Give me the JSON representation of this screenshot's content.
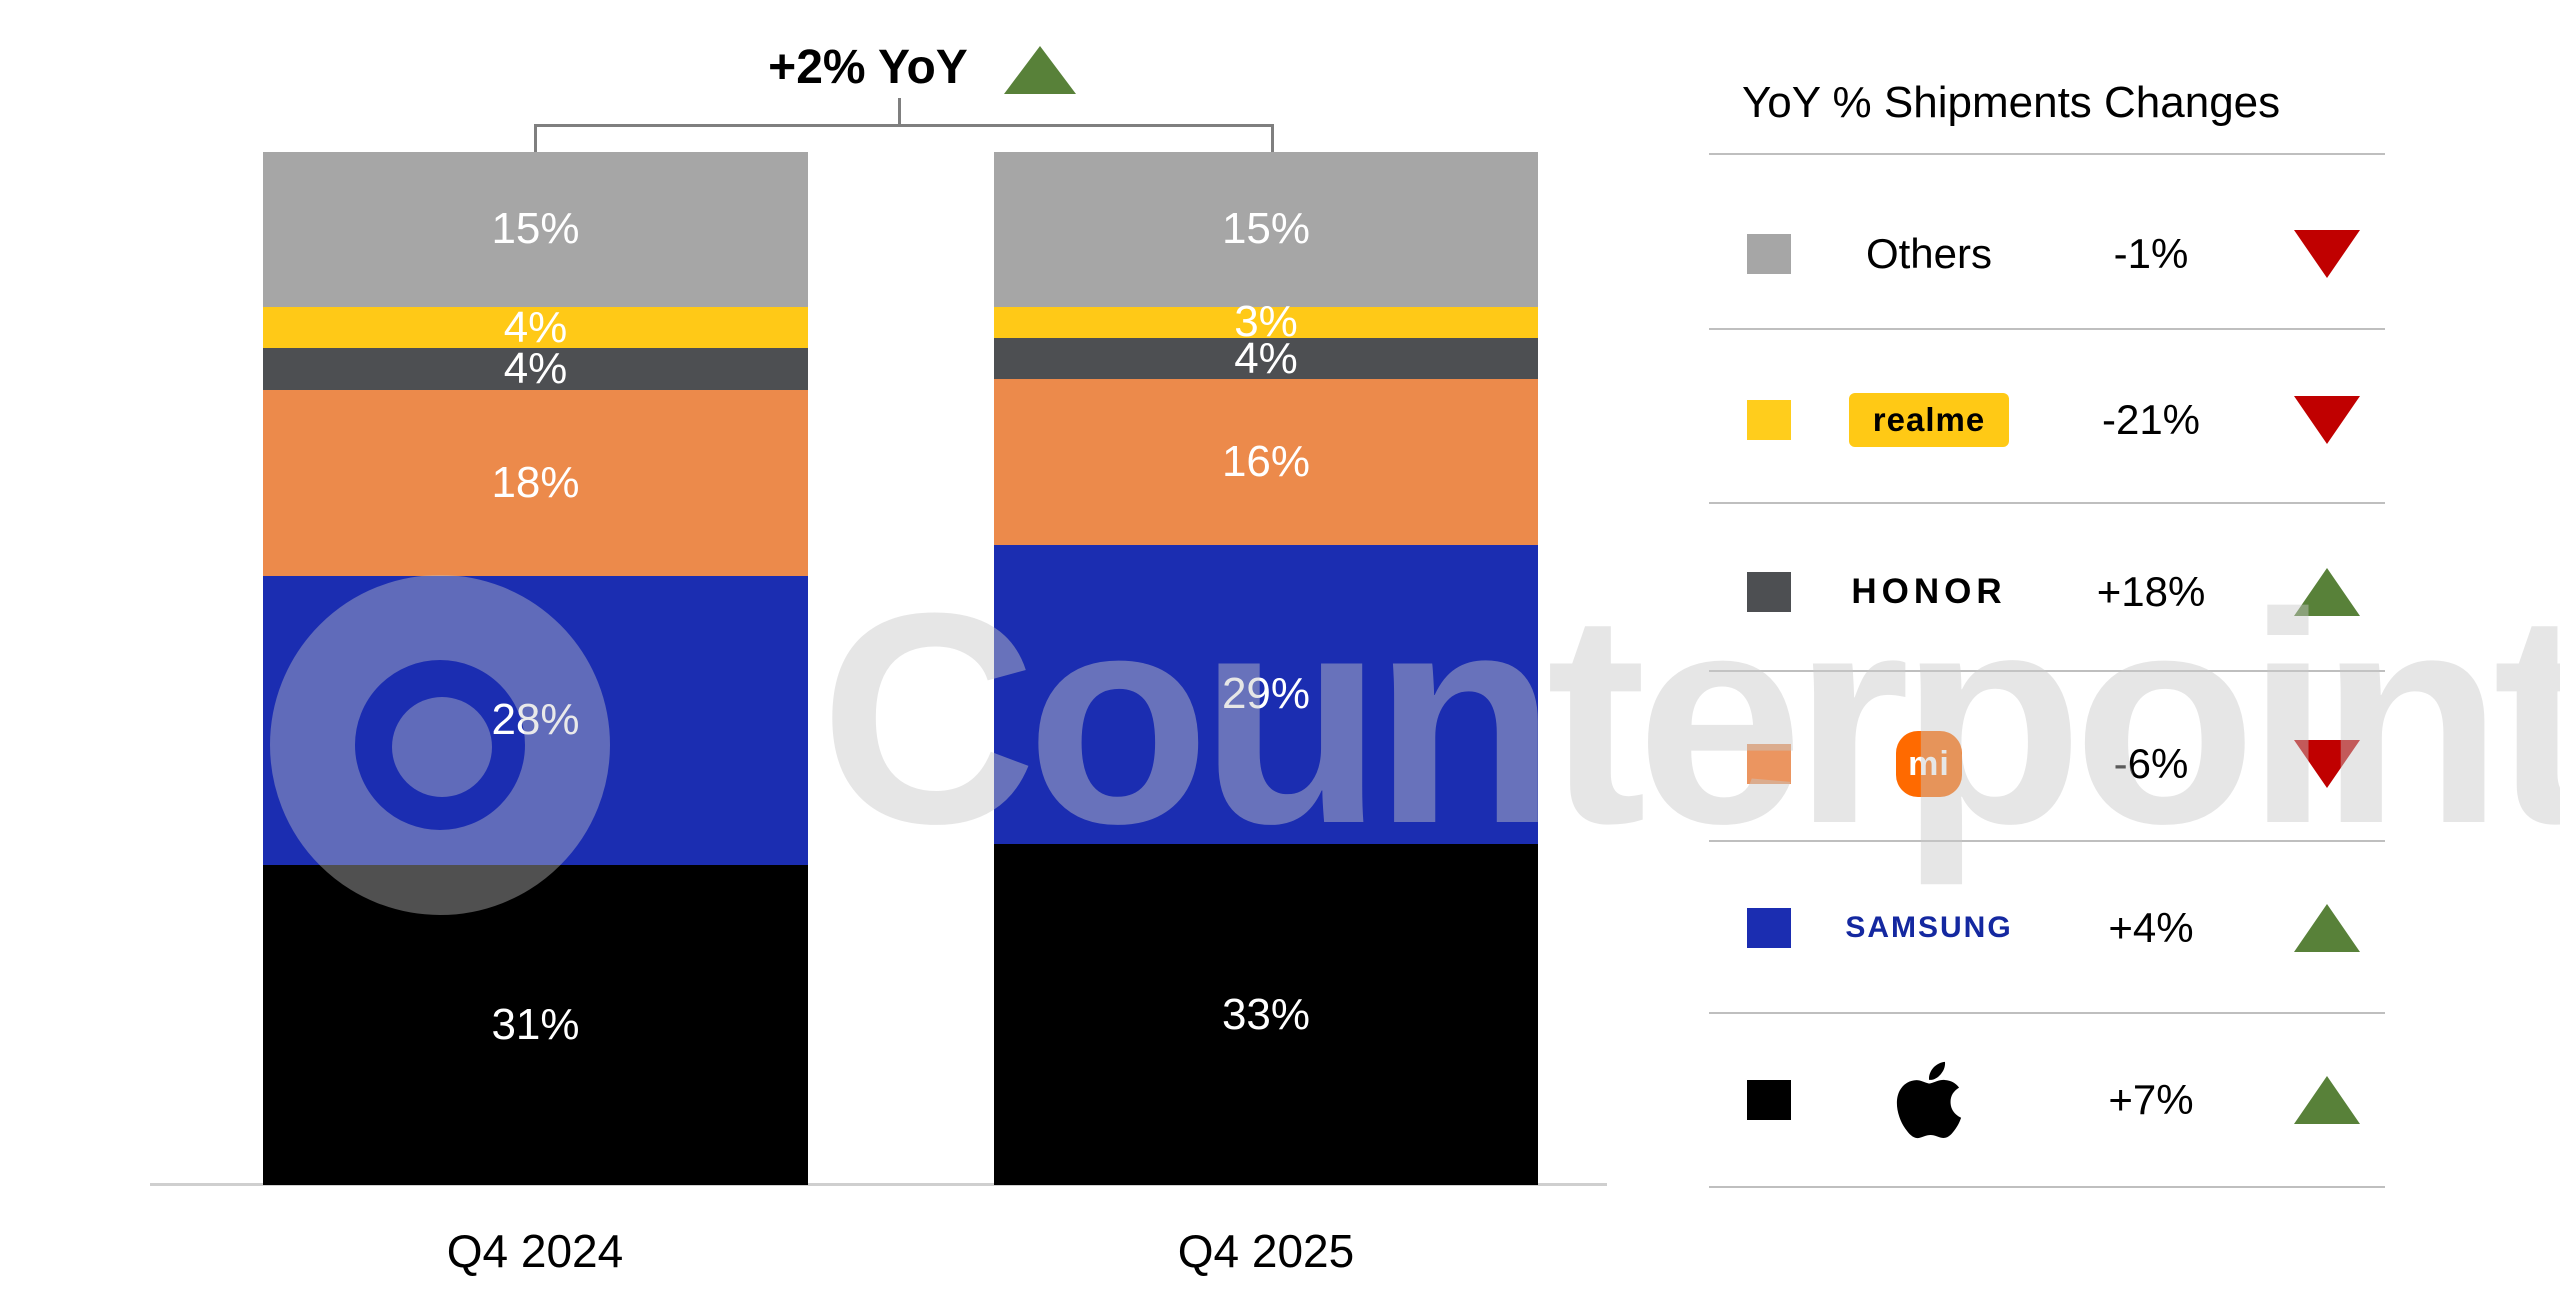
{
  "watermark": {
    "text": "Counterpoint"
  },
  "header": {
    "total_change_label": "+2% YoY",
    "trend": "up"
  },
  "chart_data": {
    "type": "bar",
    "stacked": true,
    "title": "+2% YoY",
    "categories": [
      "Q4 2024",
      "Q4 2025"
    ],
    "series": [
      {
        "name": "Apple",
        "color": "#000000",
        "values": [
          31,
          33
        ]
      },
      {
        "name": "Samsung",
        "color": "#1b2db1",
        "values": [
          28,
          29
        ]
      },
      {
        "name": "Xiaomi",
        "color": "#ec8a4b",
        "values": [
          18,
          16
        ]
      },
      {
        "name": "HONOR",
        "color": "#4d4f52",
        "values": [
          4,
          4
        ]
      },
      {
        "name": "realme",
        "color": "#ffc917",
        "values": [
          4,
          3
        ]
      },
      {
        "name": "Others",
        "color": "#a6a6a6",
        "values": [
          15,
          15
        ]
      }
    ],
    "value_suffix": "%",
    "ylim": [
      0,
      100
    ],
    "grid": false,
    "legend_position": "right",
    "annotation": "+2% YoY"
  },
  "legend": {
    "title": "YoY % Shipments Changes",
    "rows": [
      {
        "brand": "Others",
        "display": "text",
        "change": "-1%",
        "trend": "down",
        "swatch_color": "#a6a6a6"
      },
      {
        "brand": "realme",
        "display": "realme-chip",
        "change": "-21%",
        "trend": "down",
        "swatch_color": "#ffcd1c"
      },
      {
        "brand": "HONOR",
        "display": "honor-text",
        "change": "+18%",
        "trend": "up",
        "swatch_color": "#4d4f52"
      },
      {
        "brand": "mi",
        "display": "mi-logo",
        "change": "-6%",
        "trend": "down",
        "swatch_color": "#eb9560"
      },
      {
        "brand": "SAMSUNG",
        "display": "samsung-text",
        "change": "+4%",
        "trend": "up",
        "swatch_color": "#1b2db1"
      },
      {
        "brand": "Apple",
        "display": "apple-logo",
        "change": "+7%",
        "trend": "up",
        "swatch_color": "#000000"
      }
    ]
  },
  "colors": {
    "trend_up": "#588139",
    "trend_down": "#c00000",
    "bracket": "#7f7f7f",
    "separator": "#bfbfbf",
    "samsung_text": "#1428a0",
    "mi_badge": "#ff6a00",
    "realme_chip": "#ffc915"
  }
}
